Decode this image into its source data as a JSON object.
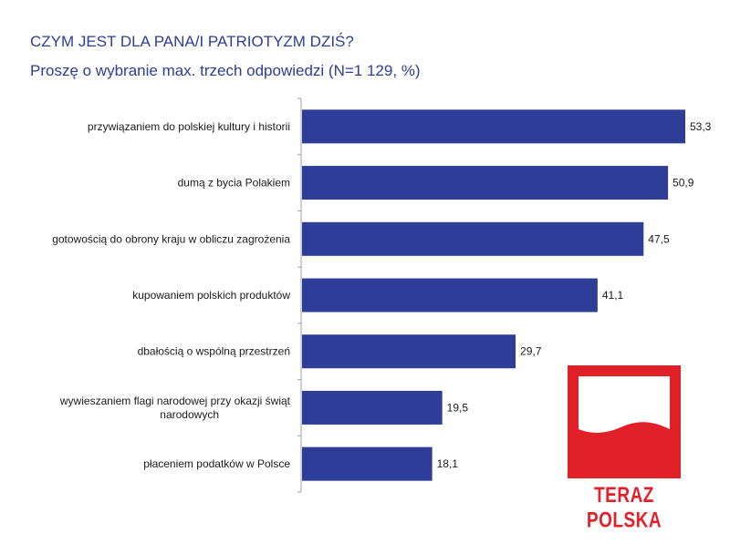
{
  "header": {
    "title": "CZYM JEST DLA PANA/I PATRIOTYZM DZIŚ?",
    "subtitle": "Proszę o wybranie max. trzech odpowiedzi (N=1 129, %)"
  },
  "chart_data": {
    "type": "bar",
    "orientation": "horizontal",
    "title": "CZYM JEST DLA PANA/I PATRIOTYZM DZIŚ?",
    "subtitle": "Proszę o wybranie max. trzech odpowiedzi (N=1 129, %)",
    "categories": [
      "przywiązaniem do polskiej kultury i historii",
      "dumą z bycia Polakiem",
      "gotowością do obrony kraju w obliczu zagrożenia",
      "kupowaniem polskich produktów",
      "dbałością o wspólną przestrzeń",
      "wywieszaniem flagi narodowej przy okazji świąt narodowych",
      "płaceniem podatków w Polsce"
    ],
    "category_lines": [
      [
        "przywiązaniem do polskiej kultury i historii"
      ],
      [
        "dumą z bycia Polakiem"
      ],
      [
        "gotowością do obrony kraju w obliczu zagrożenia"
      ],
      [
        "kupowaniem polskich produktów"
      ],
      [
        "dbałością o wspólną przestrzeń"
      ],
      [
        "wywieszaniem flagi narodowej przy okazji świąt",
        "narodowych"
      ],
      [
        "płaceniem podatków w Polsce"
      ]
    ],
    "values": [
      53.3,
      50.9,
      47.5,
      41.1,
      29.7,
      19.5,
      18.1
    ],
    "value_labels": [
      "53,3",
      "50,9",
      "47,5",
      "41,1",
      "29,7",
      "19,5",
      "18,1"
    ],
    "xlim": [
      0,
      53.3
    ],
    "grid": false,
    "bar_color": "#2e3d98"
  },
  "logo": {
    "text": "TERAZ POLSKA",
    "red": "#e2202a"
  }
}
